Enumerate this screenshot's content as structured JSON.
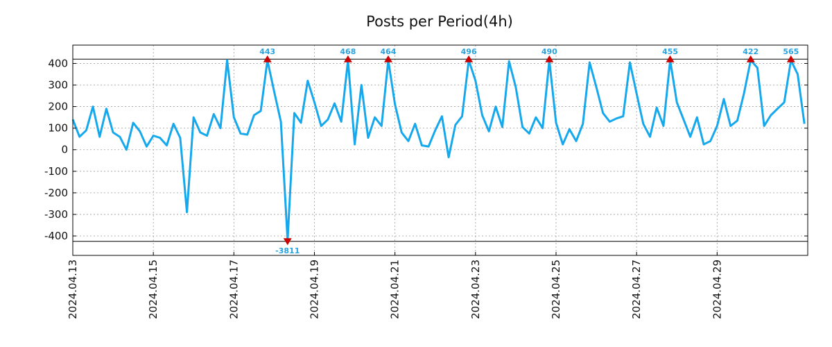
{
  "chart_data": {
    "type": "line",
    "title": "Posts per Period(4h)",
    "xlabel": "",
    "ylabel": "",
    "ylim": [
      -490,
      485
    ],
    "yticks": [
      400,
      300,
      200,
      100,
      0,
      -100,
      -200,
      -300,
      -400
    ],
    "ytick_labels": [
      "400",
      "300",
      "200",
      "100",
      "0",
      "-100",
      "-200",
      "-300",
      "-400"
    ],
    "x_start": "2024.04.12 16:00",
    "x_interval": "4h",
    "x_range_index": [
      0,
      109.5
    ],
    "date_ticks": [
      {
        "label": "2024.04.13",
        "index": 0
      },
      {
        "label": "2024.04.15",
        "index": 12
      },
      {
        "label": "2024.04.17",
        "index": 24
      },
      {
        "label": "2024.04.19",
        "index": 36
      },
      {
        "label": "2024.04.21",
        "index": 48
      },
      {
        "label": "2024.04.23",
        "index": 60
      },
      {
        "label": "2024.04.25",
        "index": 72
      },
      {
        "label": "2024.04.27",
        "index": 84
      },
      {
        "label": "2024.04.29",
        "index": 96
      }
    ],
    "clip_limits": {
      "upper": 415,
      "lower": -420
    },
    "series": [
      {
        "name": "Posts",
        "color": "#16a8ec",
        "values": [
          140,
          60,
          90,
          200,
          60,
          190,
          80,
          60,
          0,
          125,
          85,
          15,
          65,
          55,
          20,
          120,
          55,
          -290,
          150,
          80,
          65,
          165,
          100,
          415,
          150,
          75,
          70,
          160,
          180,
          415,
          270,
          130,
          -420,
          170,
          125,
          320,
          220,
          110,
          140,
          215,
          130,
          415,
          25,
          300,
          55,
          150,
          110,
          415,
          210,
          80,
          40,
          120,
          20,
          15,
          90,
          155,
          -35,
          115,
          155,
          415,
          320,
          160,
          85,
          200,
          105,
          410,
          290,
          105,
          75,
          150,
          100,
          415,
          125,
          25,
          95,
          40,
          120,
          405,
          290,
          170,
          130,
          145,
          155,
          405,
          260,
          120,
          60,
          195,
          110,
          415,
          220,
          140,
          60,
          150,
          25,
          40,
          110,
          235,
          110,
          135,
          260,
          415,
          380,
          110,
          160,
          190,
          220,
          415,
          350,
          120
        ]
      }
    ],
    "peak_labels": [
      {
        "index": 29,
        "label": "443",
        "direction": "up"
      },
      {
        "index": 32,
        "label": "-3811",
        "direction": "down"
      },
      {
        "index": 41,
        "label": "468",
        "direction": "up"
      },
      {
        "index": 47,
        "label": "464",
        "direction": "up"
      },
      {
        "index": 59,
        "label": "496",
        "direction": "up"
      },
      {
        "index": 71,
        "label": "490",
        "direction": "up"
      },
      {
        "index": 89,
        "label": "455",
        "direction": "up"
      },
      {
        "index": 101,
        "label": "422",
        "direction": "up"
      },
      {
        "index": 107,
        "label": "565",
        "direction": "up"
      }
    ]
  }
}
